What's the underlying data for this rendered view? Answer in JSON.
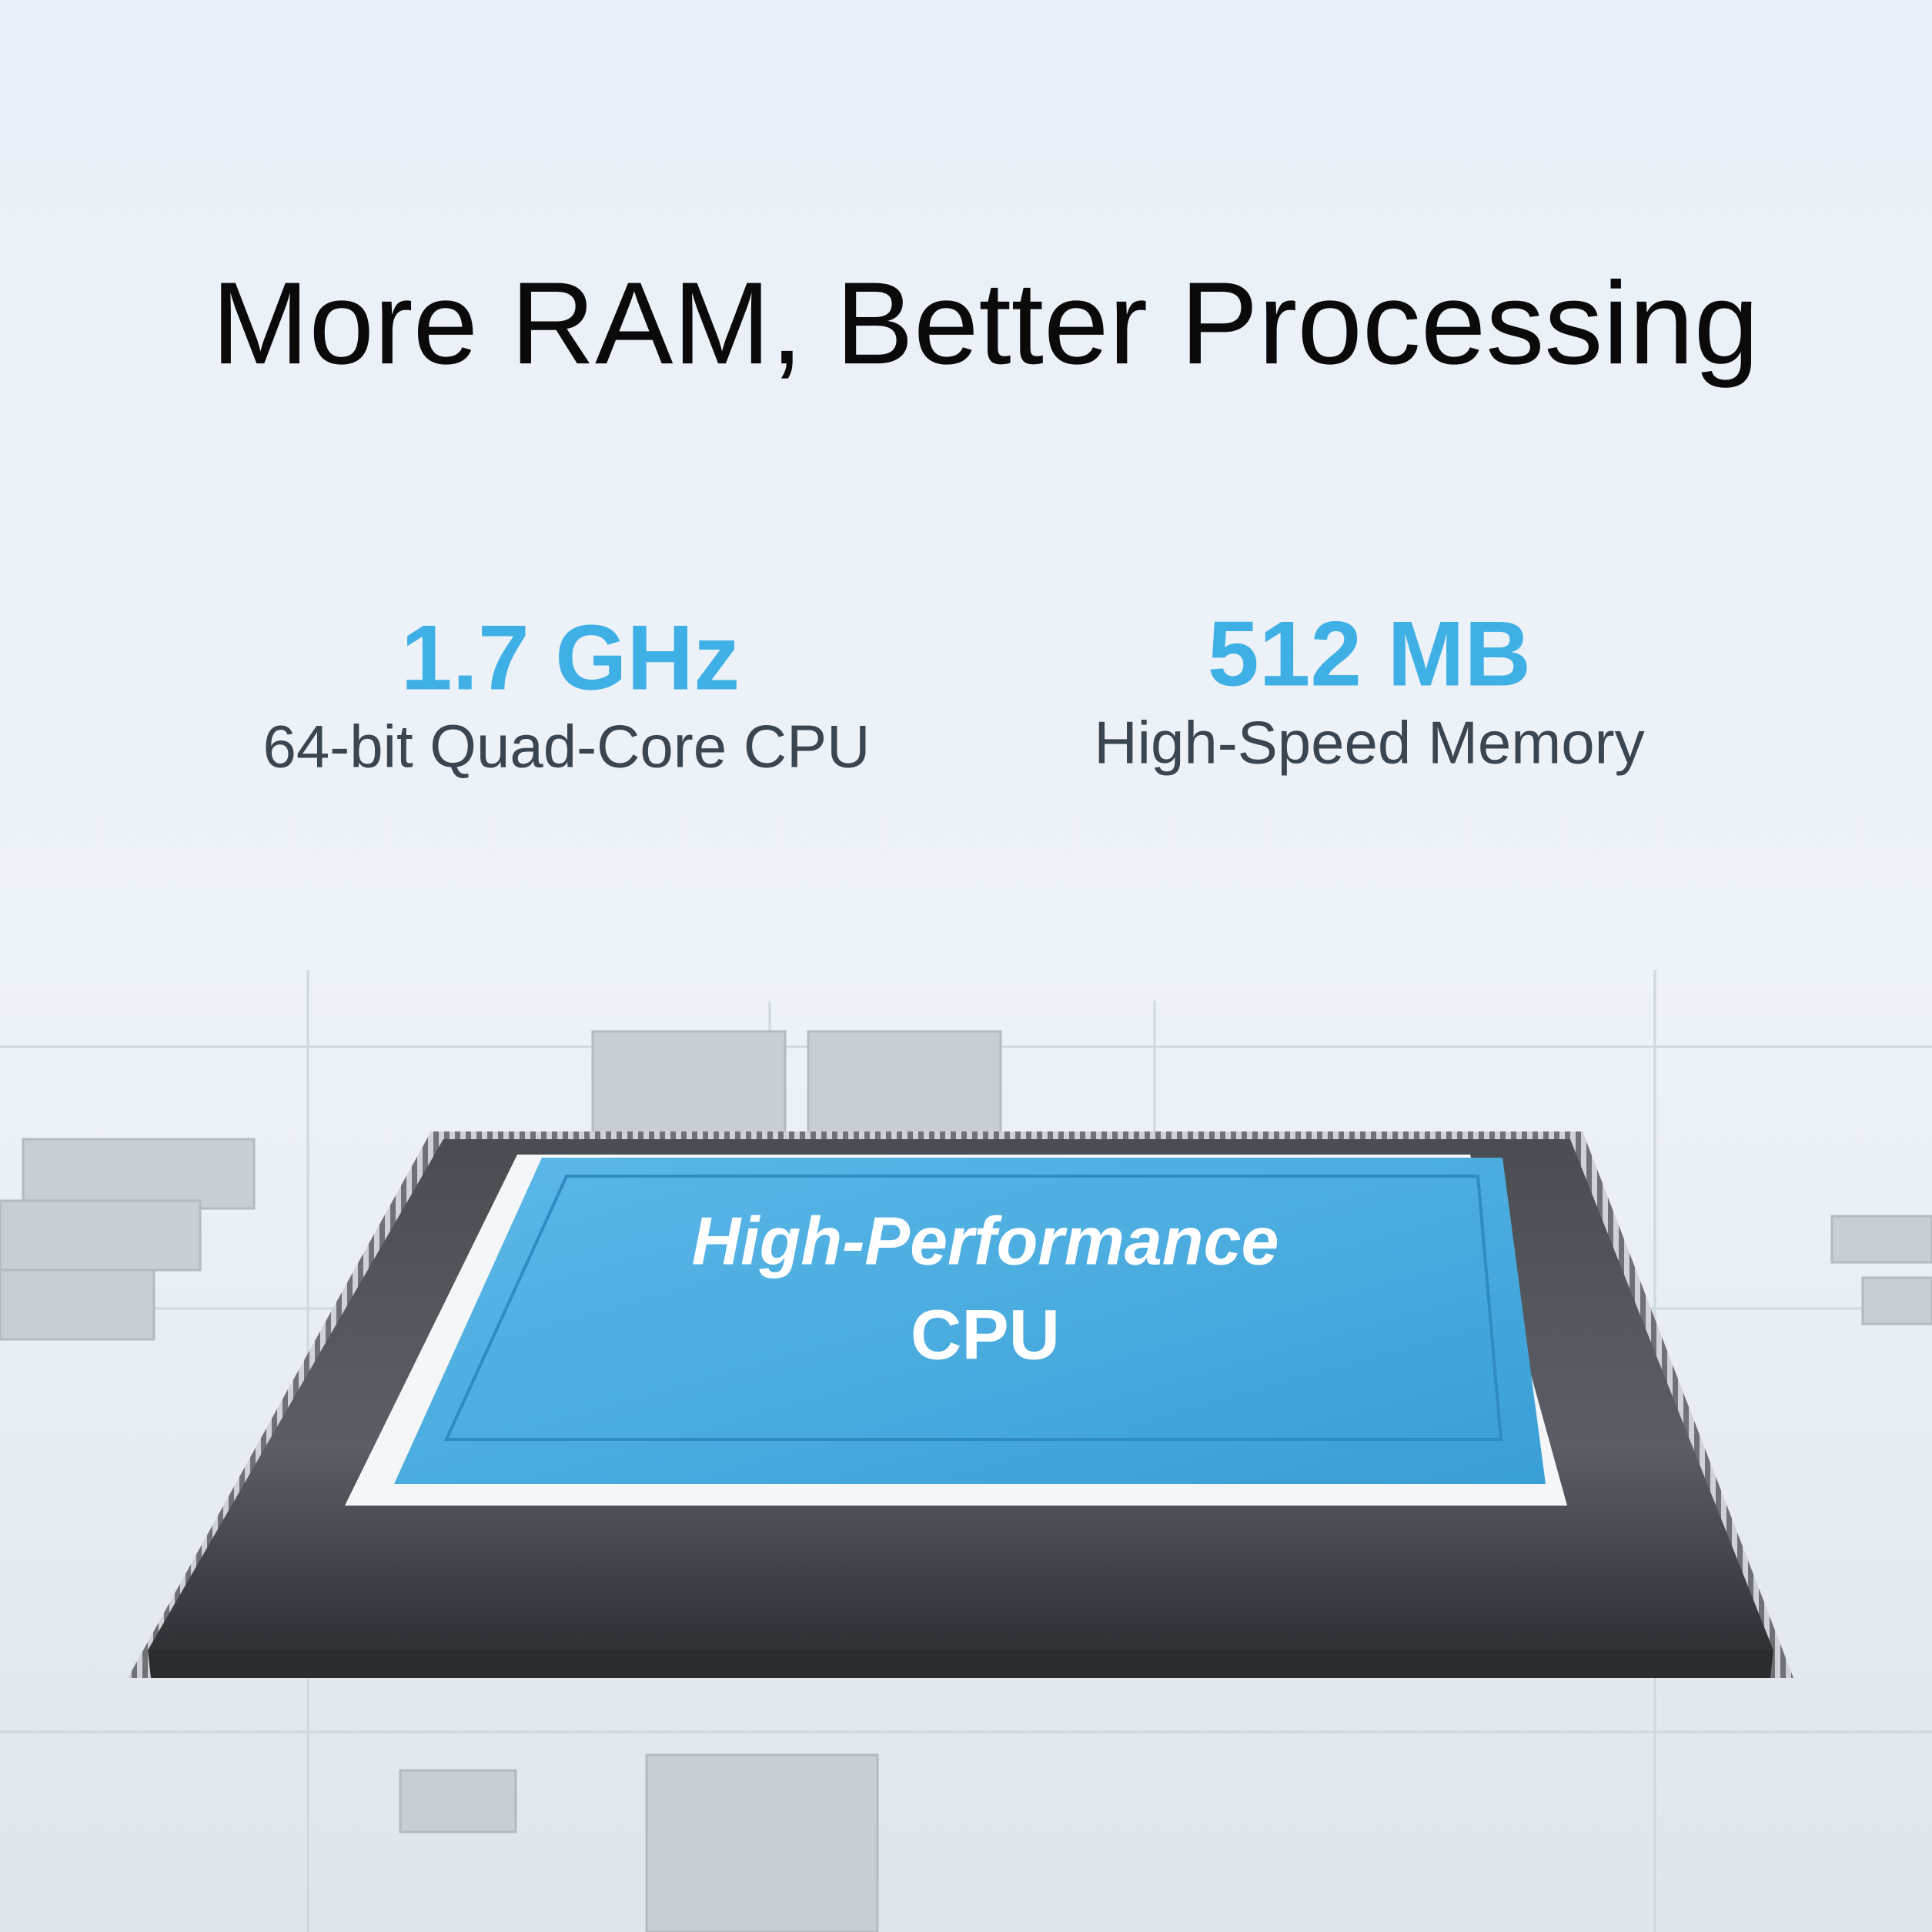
{
  "header": {
    "title": "More RAM, Better Processing"
  },
  "specs": [
    {
      "value": "1.7 GHz",
      "label": "64-bit Quad-Core CPU"
    },
    {
      "value": "512 MB",
      "label": "High-Speed Memory"
    }
  ],
  "chip": {
    "lines": [
      "High-Performance",
      "CPU"
    ]
  }
}
